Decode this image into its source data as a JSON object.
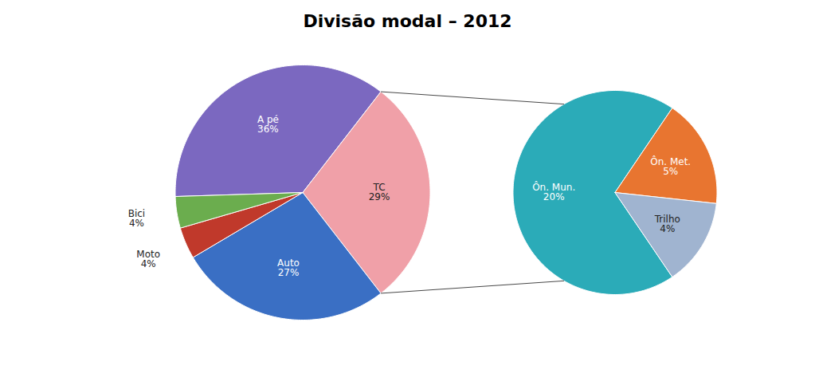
{
  "chart_data": [
    {
      "type": "pie",
      "title": "Divisão modal – 2012",
      "categories": [
        "A pé",
        "TC",
        "Auto",
        "Moto",
        "Bici"
      ],
      "values": [
        36,
        29,
        27,
        4,
        4
      ],
      "value_labels": [
        "36%",
        "29%",
        "27%",
        "4%",
        "4%"
      ],
      "colors": [
        "#7B68C0",
        "#F0A0A8",
        "#3A6FC4",
        "#C0392B",
        "#6BAD4E"
      ],
      "data_labels": true
    },
    {
      "type": "pie",
      "categories": [
        "Ôn. Mun.",
        "Ôn. Met.",
        "Trilho"
      ],
      "values": [
        20,
        5,
        4
      ],
      "value_labels": [
        "20%",
        "5%",
        "4%"
      ],
      "colors": [
        "#2BABB8",
        "#E87530",
        "#A0B4D0"
      ],
      "data_labels": true
    }
  ]
}
